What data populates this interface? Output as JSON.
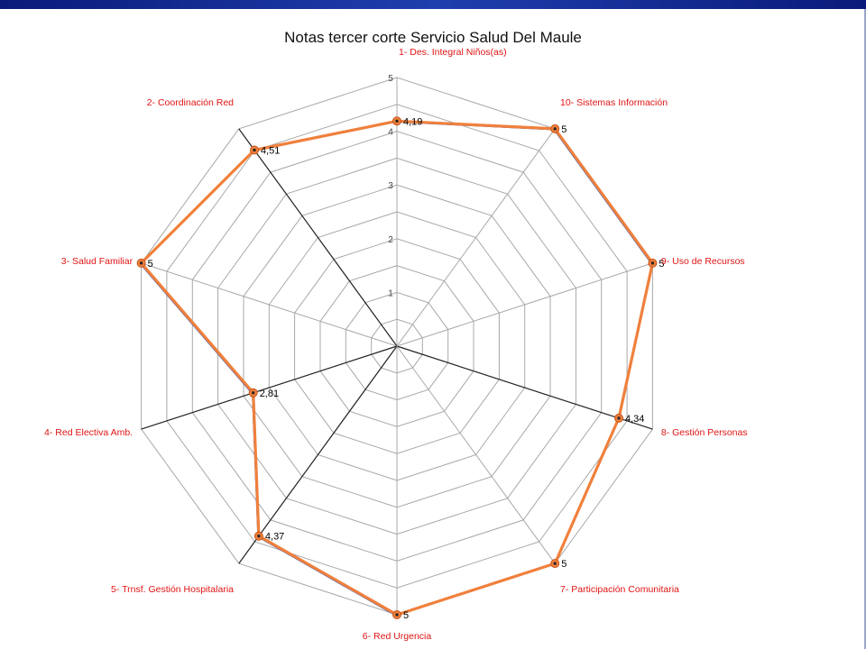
{
  "chart_data": {
    "type": "radar",
    "title": "Notas tercer corte Servicio Salud Del Maule",
    "categories": [
      "1- Des. Integral Niños(as)",
      "2- Coordinación Red",
      "3- Salud Familiar",
      "4- Red Electiva Amb.",
      "5- Trnsf. Gestión Hospitalaria",
      "6- Red Urgencia",
      "7- Participación Comunitaria",
      "8- Gestión Personas",
      "9- Uso de Recursos",
      "10- Sistemas Información"
    ],
    "tick_values": [
      "1",
      "2",
      "3",
      "4",
      "5"
    ],
    "range": [
      0,
      5
    ],
    "series": [
      {
        "values": [
          4.19,
          4.51,
          5,
          2.81,
          4.37,
          5,
          5,
          4.34,
          5,
          5
        ],
        "labels": [
          "4,19",
          "4,51",
          "5",
          "2,81",
          "4,37",
          "5",
          "5",
          "4,34",
          "5",
          "5"
        ],
        "color": "#f0803c"
      }
    ],
    "colors": {
      "grid": "#a8a8a8",
      "axis": "#222222",
      "category_text": "#e01414",
      "highlight_band": "#1f3fae"
    }
  }
}
